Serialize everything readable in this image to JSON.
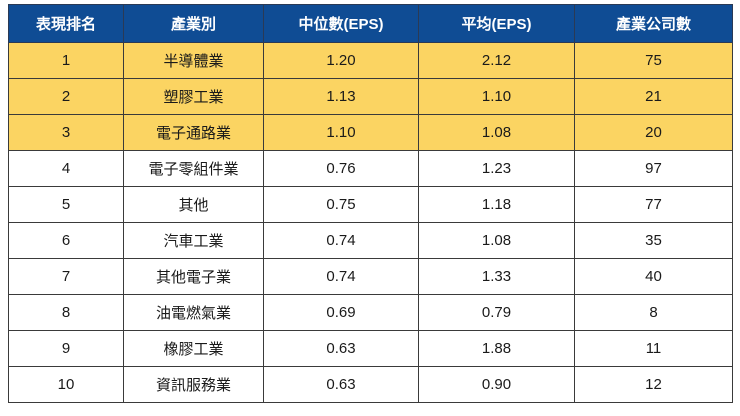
{
  "table": {
    "headers": [
      "表現排名",
      "產業別",
      "中位數(EPS)",
      "平均(EPS)",
      "產業公司數"
    ],
    "highlight_color": "#fbd462",
    "header_color": "#0f4c94",
    "rows": [
      {
        "rank": "1",
        "industry": "半導體業",
        "median": "1.20",
        "mean": "2.12",
        "count": "75",
        "highlight": true
      },
      {
        "rank": "2",
        "industry": "塑膠工業",
        "median": "1.13",
        "mean": "1.10",
        "count": "21",
        "highlight": true
      },
      {
        "rank": "3",
        "industry": "電子通路業",
        "median": "1.10",
        "mean": "1.08",
        "count": "20",
        "highlight": true
      },
      {
        "rank": "4",
        "industry": "電子零組件業",
        "median": "0.76",
        "mean": "1.23",
        "count": "97",
        "highlight": false
      },
      {
        "rank": "5",
        "industry": "其他",
        "median": "0.75",
        "mean": "1.18",
        "count": "77",
        "highlight": false
      },
      {
        "rank": "6",
        "industry": "汽車工業",
        "median": "0.74",
        "mean": "1.08",
        "count": "35",
        "highlight": false
      },
      {
        "rank": "7",
        "industry": "其他電子業",
        "median": "0.74",
        "mean": "1.33",
        "count": "40",
        "highlight": false
      },
      {
        "rank": "8",
        "industry": "油電燃氣業",
        "median": "0.69",
        "mean": "0.79",
        "count": "8",
        "highlight": false
      },
      {
        "rank": "9",
        "industry": "橡膠工業",
        "median": "0.63",
        "mean": "1.88",
        "count": "11",
        "highlight": false
      },
      {
        "rank": "10",
        "industry": "資訊服務業",
        "median": "0.63",
        "mean": "0.90",
        "count": "12",
        "highlight": false
      }
    ]
  }
}
